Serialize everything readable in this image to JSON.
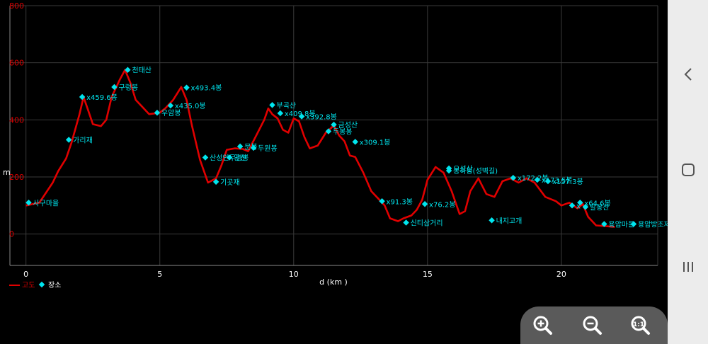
{
  "chart_data": {
    "type": "line",
    "xlabel": "d (km )",
    "ylabel": "m",
    "xlim": [
      -0.6,
      23.6
    ],
    "ylim": [
      -110,
      800
    ],
    "x_ticks": [
      0,
      5,
      10,
      15,
      20
    ],
    "y_ticks": [
      0,
      200,
      400,
      600,
      800
    ],
    "grid": true,
    "legend": {
      "position": "bottom-left",
      "items": [
        "고도",
        "장소"
      ]
    },
    "series": [
      {
        "name": "고도",
        "color": "#e00000",
        "points": [
          [
            0.0,
            100
          ],
          [
            0.5,
            110
          ],
          [
            1.0,
            180
          ],
          [
            1.2,
            220
          ],
          [
            1.5,
            265
          ],
          [
            1.7,
            320
          ],
          [
            2.0,
            420
          ],
          [
            2.15,
            480
          ],
          [
            2.3,
            440
          ],
          [
            2.5,
            385
          ],
          [
            2.8,
            378
          ],
          [
            3.0,
            400
          ],
          [
            3.2,
            480
          ],
          [
            3.5,
            540
          ],
          [
            3.7,
            575
          ],
          [
            3.9,
            530
          ],
          [
            4.1,
            470
          ],
          [
            4.3,
            450
          ],
          [
            4.6,
            420
          ],
          [
            5.0,
            425
          ],
          [
            5.2,
            440
          ],
          [
            5.5,
            470
          ],
          [
            5.8,
            515
          ],
          [
            6.0,
            470
          ],
          [
            6.2,
            380
          ],
          [
            6.5,
            260
          ],
          [
            6.8,
            180
          ],
          [
            7.1,
            195
          ],
          [
            7.3,
            240
          ],
          [
            7.5,
            295
          ],
          [
            7.8,
            300
          ],
          [
            8.1,
            298
          ],
          [
            8.3,
            290
          ],
          [
            8.6,
            345
          ],
          [
            8.9,
            400
          ],
          [
            9.05,
            440
          ],
          [
            9.2,
            420
          ],
          [
            9.4,
            405
          ],
          [
            9.6,
            365
          ],
          [
            9.8,
            355
          ],
          [
            10.0,
            405
          ],
          [
            10.2,
            395
          ],
          [
            10.4,
            340
          ],
          [
            10.6,
            300
          ],
          [
            10.9,
            310
          ],
          [
            11.2,
            355
          ],
          [
            11.5,
            380
          ],
          [
            11.7,
            345
          ],
          [
            11.9,
            325
          ],
          [
            12.1,
            275
          ],
          [
            12.3,
            270
          ],
          [
            12.6,
            215
          ],
          [
            12.9,
            150
          ],
          [
            13.2,
            120
          ],
          [
            13.4,
            100
          ],
          [
            13.6,
            55
          ],
          [
            13.9,
            45
          ],
          [
            14.1,
            55
          ],
          [
            14.4,
            65
          ],
          [
            14.6,
            85
          ],
          [
            14.8,
            120
          ],
          [
            15.0,
            190
          ],
          [
            15.3,
            235
          ],
          [
            15.6,
            215
          ],
          [
            15.9,
            150
          ],
          [
            16.2,
            70
          ],
          [
            16.4,
            80
          ],
          [
            16.6,
            150
          ],
          [
            16.9,
            195
          ],
          [
            17.2,
            140
          ],
          [
            17.5,
            130
          ],
          [
            17.8,
            185
          ],
          [
            18.1,
            195
          ],
          [
            18.4,
            180
          ],
          [
            18.7,
            195
          ],
          [
            19.0,
            180
          ],
          [
            19.4,
            130
          ],
          [
            19.8,
            115
          ],
          [
            20.0,
            100
          ],
          [
            20.3,
            110
          ],
          [
            20.6,
            90
          ],
          [
            20.8,
            105
          ],
          [
            21.0,
            60
          ],
          [
            21.3,
            30
          ],
          [
            21.6,
            28
          ],
          [
            22.0,
            25
          ]
        ]
      },
      {
        "name": "장소",
        "color": "#00e5ee",
        "places": [
          {
            "x": 0.1,
            "y": 110,
            "label": "사구마을"
          },
          {
            "x": 1.6,
            "y": 330,
            "label": "가리재"
          },
          {
            "x": 2.1,
            "y": 480,
            "label": "x459.6봉"
          },
          {
            "x": 3.3,
            "y": 515,
            "label": "구렁봉"
          },
          {
            "x": 3.8,
            "y": 575,
            "label": "천태산"
          },
          {
            "x": 4.9,
            "y": 425,
            "label": "우암봉"
          },
          {
            "x": 5.4,
            "y": 450,
            "label": "x435.0봉"
          },
          {
            "x": 6.0,
            "y": 513,
            "label": "x493.4봉"
          },
          {
            "x": 6.7,
            "y": 268,
            "label": "산성인두경봉"
          },
          {
            "x": 7.1,
            "y": 183,
            "label": "기곳재"
          },
          {
            "x": 7.6,
            "y": 268,
            "label": "양산"
          },
          {
            "x": 8.0,
            "y": 307,
            "label": "문봉"
          },
          {
            "x": 8.5,
            "y": 302,
            "label": "두원봉"
          },
          {
            "x": 9.2,
            "y": 452,
            "label": "부곡산"
          },
          {
            "x": 9.5,
            "y": 423,
            "label": "x409.8봉"
          },
          {
            "x": 10.3,
            "y": 412,
            "label": "x392.8봉"
          },
          {
            "x": 11.5,
            "y": 383,
            "label": "금성산"
          },
          {
            "x": 11.3,
            "y": 360,
            "label": "두봉봉"
          },
          {
            "x": 12.3,
            "y": 323,
            "label": "x309.1봉"
          },
          {
            "x": 13.3,
            "y": 115,
            "label": "x91.3봉"
          },
          {
            "x": 14.2,
            "y": 40,
            "label": "신티삼거리"
          },
          {
            "x": 14.9,
            "y": 105,
            "label": "x76.2봉"
          },
          {
            "x": 15.8,
            "y": 230,
            "label": "오성산"
          },
          {
            "x": 15.8,
            "y": 222,
            "label": "봉하봉(성벽길)"
          },
          {
            "x": 17.4,
            "y": 48,
            "label": "내지고개"
          },
          {
            "x": 18.2,
            "y": 197,
            "label": "x172.2봉"
          },
          {
            "x": 19.1,
            "y": 190,
            "label": "x173.5봉"
          },
          {
            "x": 19.5,
            "y": 185,
            "label": "x157.3봉"
          },
          {
            "x": 20.4,
            "y": 100,
            "label": "x"
          },
          {
            "x": 20.7,
            "y": 110,
            "label": "x64.6봉"
          },
          {
            "x": 20.9,
            "y": 95,
            "label": "발봉산"
          },
          {
            "x": 21.6,
            "y": 35,
            "label": "용암마을"
          },
          {
            "x": 22.7,
            "y": 35,
            "label": "용암방조제"
          }
        ]
      }
    ]
  },
  "toolbar": {
    "zoom_in": "zoom-in-icon",
    "zoom_out": "zoom-out-icon",
    "zoom_fit": "zoom-fit-icon"
  },
  "nav": {
    "back": "back-icon",
    "home": "home-icon",
    "recents": "recents-icon"
  }
}
